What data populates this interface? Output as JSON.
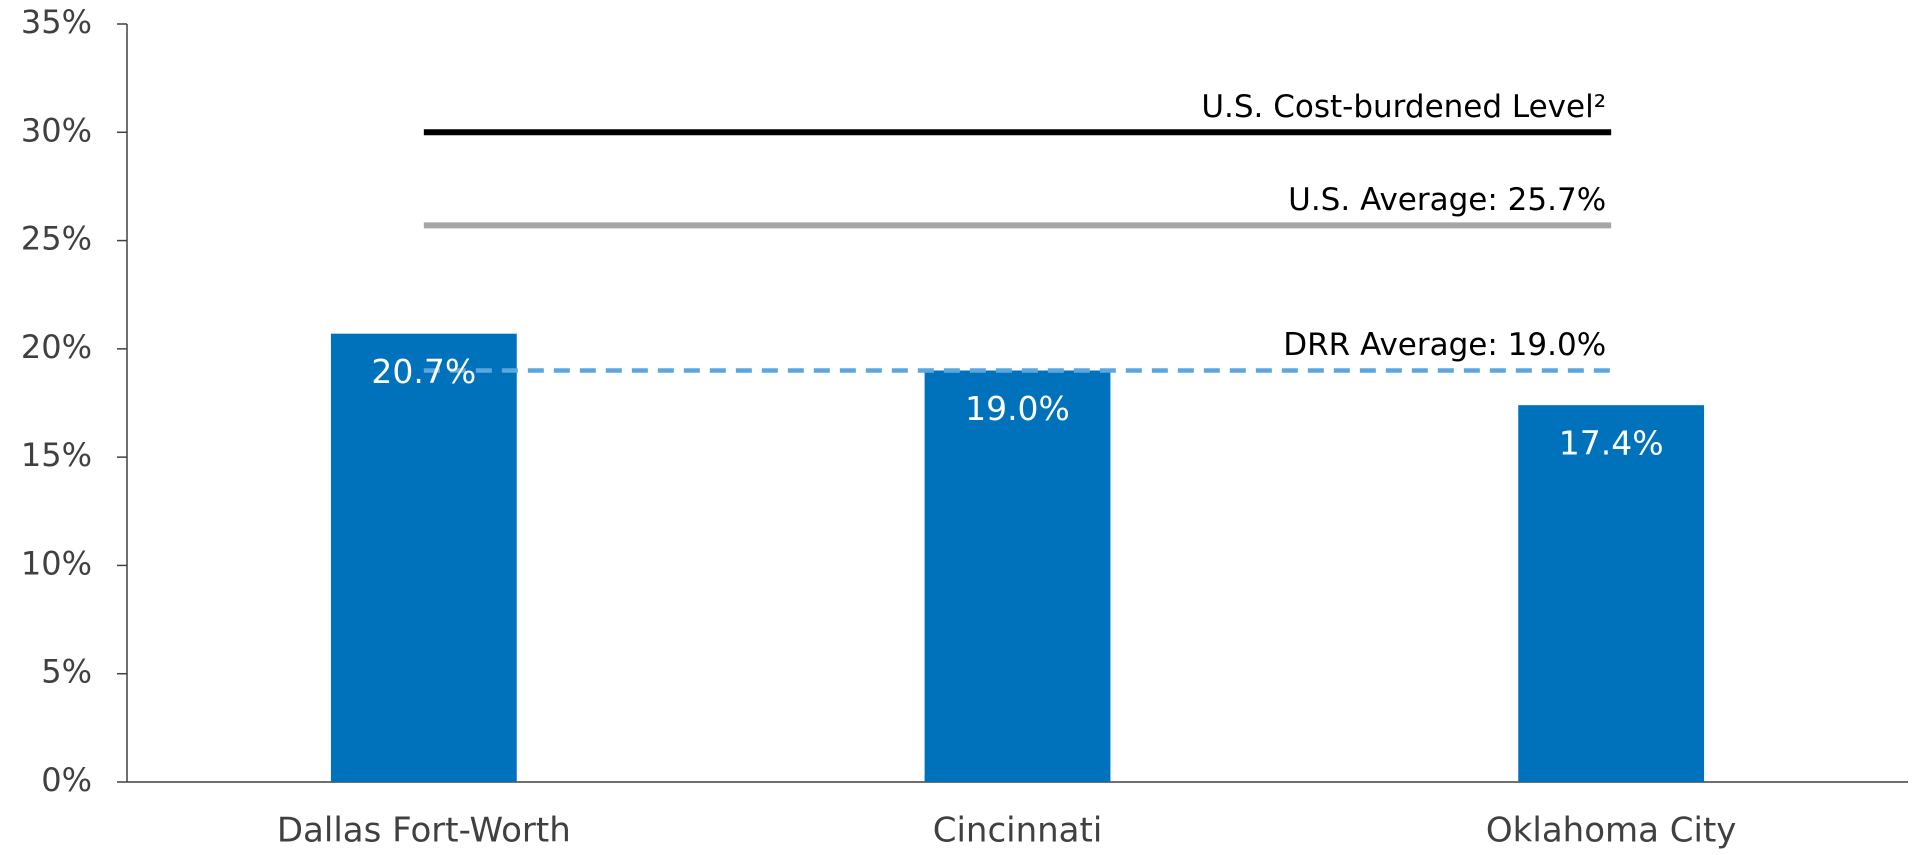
{
  "chart_data": {
    "type": "bar",
    "categories": [
      "Dallas Fort-Worth",
      "Cincinnati",
      "Oklahoma City"
    ],
    "values": [
      20.7,
      19.0,
      17.4
    ],
    "value_labels": [
      "20.7%",
      "19.0%",
      "17.4%"
    ],
    "color": "#0072bc",
    "ylim": [
      0,
      35
    ],
    "yticks": [
      {
        "value": 0,
        "label": "0%"
      },
      {
        "value": 5,
        "label": "5%"
      },
      {
        "value": 10,
        "label": "10%"
      },
      {
        "value": 15,
        "label": "15%"
      },
      {
        "value": 20,
        "label": "20%"
      },
      {
        "value": 25,
        "label": "25%"
      },
      {
        "value": 30,
        "label": "30%"
      },
      {
        "value": 35,
        "label": "35%"
      }
    ],
    "grid": false,
    "reference_lines": [
      {
        "label": "U.S. Cost-burdened Level²",
        "value": 30,
        "color": "#000000",
        "style": "solid"
      },
      {
        "label": "U.S. Average: 25.7%",
        "value": 25.7,
        "color": "#a6a6a6",
        "style": "solid"
      },
      {
        "label": "DRR Average: 19.0%",
        "value": 19.0,
        "color": "#5aa7e0",
        "style": "dashed"
      }
    ]
  }
}
